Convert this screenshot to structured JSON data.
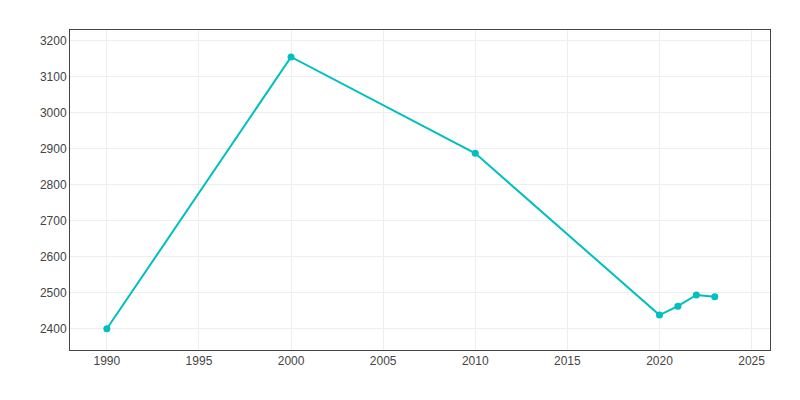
{
  "chart_data": {
    "type": "line",
    "x": [
      1990,
      2000,
      2010,
      2020,
      2021,
      2022,
      2023
    ],
    "values": [
      2399,
      3155,
      2887,
      2437,
      2462,
      2493,
      2488
    ],
    "color": "#00BFBF",
    "marker": "circle",
    "xlim": [
      1988,
      2026
    ],
    "ylim": [
      2340,
      3230
    ],
    "xticks": [
      1990,
      1995,
      2000,
      2005,
      2010,
      2015,
      2020,
      2025
    ],
    "yticks": [
      2400,
      2500,
      2600,
      2700,
      2800,
      2900,
      3000,
      3100,
      3200
    ],
    "grid": true
  }
}
